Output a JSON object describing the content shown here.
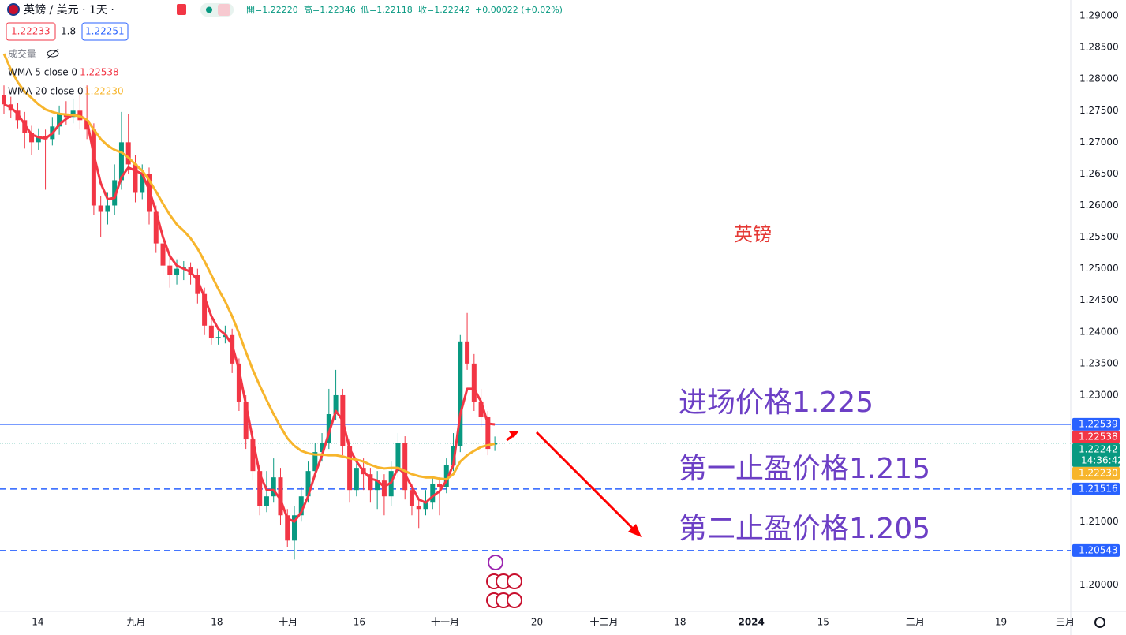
{
  "chart_data": {
    "type": "candlestick",
    "title": "英鎊 / 美元 · 1天 ·",
    "ohlc_header": [
      "開=1.22220",
      "高=1.22346",
      "低=1.22118",
      "收=1.22242",
      "+0.00022 (+0.02%)"
    ],
    "quote": {
      "bid": 1.22233,
      "spread": 1.8,
      "ask": 1.22251
    },
    "volume_label": "成交量",
    "up_color": "#089981",
    "down_color": "#f23645",
    "candles": {
      "open": [
        1.2775,
        1.276,
        1.275,
        1.2735,
        1.2715,
        1.27,
        1.271,
        1.2705,
        1.2725,
        1.2745,
        1.274,
        1.275,
        1.2735,
        1.272,
        1.26,
        1.259,
        1.26,
        1.264,
        1.27,
        1.2665,
        1.262,
        1.265,
        1.259,
        1.254,
        1.2505,
        1.249,
        1.25,
        1.2502,
        1.249,
        1.246,
        1.241,
        1.239,
        1.2392,
        1.2395,
        1.235,
        1.229,
        1.223,
        1.218,
        1.2125,
        1.214,
        1.217,
        1.211,
        1.207,
        1.211,
        1.214,
        1.218,
        1.221,
        1.2225,
        1.227,
        1.23,
        1.222,
        1.215,
        1.2185,
        1.2175,
        1.215,
        1.2165,
        1.214,
        1.218,
        1.2225,
        1.215,
        1.2125,
        1.212,
        1.213,
        1.216,
        1.2155,
        1.219,
        1.222,
        1.2385,
        1.235,
        1.229,
        1.2265,
        1.2222
      ],
      "high": [
        1.279,
        1.2772,
        1.2762,
        1.2748,
        1.2726,
        1.2722,
        1.272,
        1.274,
        1.2758,
        1.2765,
        1.2768,
        1.2775,
        1.279,
        1.273,
        1.2615,
        1.262,
        1.2665,
        1.2748,
        1.2745,
        1.268,
        1.2665,
        1.266,
        1.26,
        1.2555,
        1.252,
        1.2515,
        1.2512,
        1.251,
        1.25,
        1.247,
        1.242,
        1.2402,
        1.241,
        1.2405,
        1.2358,
        1.23,
        1.224,
        1.219,
        1.218,
        1.22,
        1.2185,
        1.212,
        1.2125,
        1.2155,
        1.2195,
        1.2225,
        1.224,
        1.231,
        1.234,
        1.231,
        1.223,
        1.2195,
        1.22,
        1.2185,
        1.218,
        1.2175,
        1.2195,
        1.224,
        1.2235,
        1.216,
        1.2135,
        1.215,
        1.217,
        1.217,
        1.22,
        1.224,
        1.2395,
        1.243,
        1.2365,
        1.231,
        1.2275,
        1.22346
      ],
      "low": [
        1.2745,
        1.2738,
        1.2722,
        1.269,
        1.268,
        1.2688,
        1.2625,
        1.2695,
        1.2712,
        1.2728,
        1.273,
        1.272,
        1.2705,
        1.2585,
        1.255,
        1.257,
        1.2585,
        1.2625,
        1.265,
        1.2605,
        1.261,
        1.257,
        1.2525,
        1.249,
        1.247,
        1.2475,
        1.2482,
        1.2475,
        1.2445,
        1.2395,
        1.238,
        1.238,
        1.2382,
        1.2335,
        1.2275,
        1.2215,
        1.2165,
        1.211,
        1.2115,
        1.213,
        1.2095,
        1.206,
        1.204,
        1.21,
        1.213,
        1.217,
        1.2195,
        1.2215,
        1.226,
        1.2205,
        1.213,
        1.214,
        1.215,
        1.213,
        1.212,
        1.211,
        1.2125,
        1.217,
        1.2135,
        1.211,
        1.209,
        1.211,
        1.212,
        1.211,
        1.2145,
        1.218,
        1.221,
        1.234,
        1.2275,
        1.225,
        1.2205,
        1.22118
      ],
      "close": [
        1.276,
        1.275,
        1.2735,
        1.2715,
        1.27,
        1.271,
        1.2705,
        1.2725,
        1.2745,
        1.274,
        1.275,
        1.2735,
        1.272,
        1.26,
        1.259,
        1.26,
        1.264,
        1.27,
        1.2665,
        1.262,
        1.265,
        1.259,
        1.254,
        1.2505,
        1.249,
        1.25,
        1.2502,
        1.249,
        1.246,
        1.241,
        1.239,
        1.2392,
        1.2395,
        1.235,
        1.229,
        1.223,
        1.218,
        1.2125,
        1.214,
        1.217,
        1.211,
        1.207,
        1.211,
        1.214,
        1.218,
        1.221,
        1.2225,
        1.227,
        1.23,
        1.222,
        1.215,
        1.2185,
        1.2175,
        1.215,
        1.2165,
        1.214,
        1.218,
        1.2225,
        1.215,
        1.2125,
        1.212,
        1.213,
        1.216,
        1.2155,
        1.219,
        1.222,
        1.2385,
        1.235,
        1.229,
        1.2265,
        1.2215,
        1.22242
      ]
    },
    "series": [
      {
        "name": "WMA 5 close 0",
        "color": "#f23645",
        "values": [
          1.276,
          1.2755,
          1.2745,
          1.2728,
          1.2712,
          1.2708,
          1.2706,
          1.2714,
          1.2728,
          1.2737,
          1.2744,
          1.2742,
          1.2735,
          1.268,
          1.2635,
          1.261,
          1.2612,
          1.2645,
          1.266,
          1.2655,
          1.265,
          1.2625,
          1.259,
          1.255,
          1.252,
          1.2505,
          1.25,
          1.2495,
          1.2482,
          1.2455,
          1.2425,
          1.2405,
          1.2396,
          1.238,
          1.234,
          1.2285,
          1.223,
          1.2175,
          1.215,
          1.215,
          1.2135,
          1.2105,
          1.21,
          1.2115,
          1.214,
          1.2175,
          1.2205,
          1.224,
          1.2275,
          1.226,
          1.2215,
          1.2195,
          1.218,
          1.2168,
          1.2165,
          1.2155,
          1.2162,
          1.2185,
          1.2175,
          1.2155,
          1.2135,
          1.213,
          1.214,
          1.2148,
          1.2165,
          1.219,
          1.227,
          1.231,
          1.231,
          1.229,
          1.2255,
          1.22538
        ]
      },
      {
        "name": "WMA 20 close 0",
        "color": "#f7b52c",
        "values": [
          1.284,
          1.2815,
          1.2795,
          1.278,
          1.277,
          1.276,
          1.2752,
          1.2748,
          1.2745,
          1.2744,
          1.2743,
          1.2741,
          1.2736,
          1.272,
          1.2705,
          1.2695,
          1.2688,
          1.2684,
          1.2676,
          1.2665,
          1.2655,
          1.264,
          1.2622,
          1.2603,
          1.2585,
          1.257,
          1.256,
          1.2548,
          1.2532,
          1.2512,
          1.249,
          1.2468,
          1.2448,
          1.2425,
          1.2398,
          1.2368,
          1.234,
          1.2315,
          1.2292,
          1.227,
          1.225,
          1.2232,
          1.222,
          1.2212,
          1.2208,
          1.2206,
          1.2206,
          1.2205,
          1.2205,
          1.2203,
          1.22,
          1.2198,
          1.2195,
          1.219,
          1.2186,
          1.2184,
          1.2185,
          1.2185,
          1.218,
          1.2175,
          1.2172,
          1.217,
          1.217,
          1.2168,
          1.2167,
          1.2175,
          1.2195,
          1.2205,
          1.2212,
          1.2218,
          1.2221,
          1.2223
        ]
      }
    ],
    "hlines": [
      {
        "value": 1.22539,
        "color": "#2962ff",
        "style": "solid"
      },
      {
        "value": 1.22242,
        "color": "#089981",
        "style": "dotted"
      },
      {
        "value": 1.21516,
        "color": "#2962ff",
        "style": "dashed"
      },
      {
        "value": 1.20543,
        "color": "#2962ff",
        "style": "dashed"
      }
    ],
    "price_labels": [
      {
        "value": 1.22539,
        "color": "#2962ff"
      },
      {
        "value": 1.22538,
        "color": "#f23645"
      },
      {
        "value": 1.22242,
        "color": "#089981",
        "countdown": "14:36:42"
      },
      {
        "value": 1.2223,
        "label": "1.22230",
        "color": "#f7b52c"
      },
      {
        "value": 1.21516,
        "color": "#2962ff"
      },
      {
        "value": 1.20543,
        "color": "#2962ff"
      }
    ],
    "annotations": [
      {
        "text": "英镑",
        "color": "#e53935"
      },
      {
        "text": "进场价格1.225",
        "color": "#6c3fc5"
      },
      {
        "text": "第一止盈价格1.215",
        "color": "#6c3fc5"
      },
      {
        "text": "第二止盈价格1.205",
        "color": "#6c3fc5"
      }
    ],
    "xlim": [
      -0.57,
      154.3
    ],
    "ylim": [
      1.19581,
      1.2925
    ],
    "xticks": [
      {
        "value": 4.9,
        "label": "14"
      },
      {
        "value": 19.1,
        "label": "九月"
      },
      {
        "value": 30.8,
        "label": "18"
      },
      {
        "value": 41.1,
        "label": "十月"
      },
      {
        "value": 51.4,
        "label": "16"
      },
      {
        "value": 63.8,
        "label": "十一月"
      },
      {
        "value": 77.1,
        "label": "20"
      },
      {
        "value": 86.8,
        "label": "十二月"
      },
      {
        "value": 97.8,
        "label": "18"
      },
      {
        "value": 108.1,
        "label": "2024"
      },
      {
        "value": 118.5,
        "label": "15"
      },
      {
        "value": 131.8,
        "label": "二月"
      },
      {
        "value": 144.2,
        "label": "19"
      },
      {
        "value": 153.5,
        "label": "三月"
      }
    ],
    "yticks": [
      {
        "value": 1.2,
        "label": "1.20000"
      },
      {
        "value": 1.205,
        "label": "1.20500"
      },
      {
        "value": 1.21,
        "label": "1.21000"
      },
      {
        "value": 1.215,
        "label": "1.21500"
      },
      {
        "value": 1.22,
        "label": "1.22000"
      },
      {
        "value": 1.225,
        "label": "1.22500"
      },
      {
        "value": 1.23,
        "label": "1.23000"
      },
      {
        "value": 1.235,
        "label": "1.23500"
      },
      {
        "value": 1.24,
        "label": "1.24000"
      },
      {
        "value": 1.245,
        "label": "1.24500"
      },
      {
        "value": 1.25,
        "label": "1.25000"
      },
      {
        "value": 1.255,
        "label": "1.25500"
      },
      {
        "value": 1.26,
        "label": "1.26000"
      },
      {
        "value": 1.265,
        "label": "1.26500"
      },
      {
        "value": 1.27,
        "label": "1.27000"
      },
      {
        "value": 1.275,
        "label": "1.27500"
      },
      {
        "value": 1.28,
        "label": "1.28000"
      },
      {
        "value": 1.285,
        "label": "1.28500"
      },
      {
        "value": 1.29,
        "label": "1.29000"
      }
    ],
    "grid": false
  }
}
